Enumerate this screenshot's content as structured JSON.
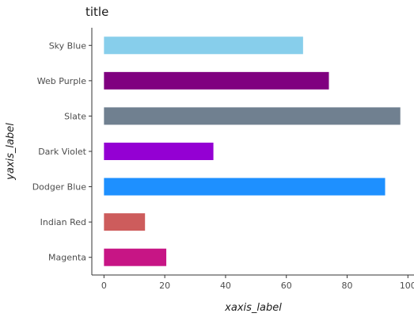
{
  "chart_data": {
    "type": "bar",
    "orientation": "horizontal",
    "title": "title",
    "xlabel": "xaxis_label",
    "ylabel": "yaxis_label",
    "xlim": [
      -4,
      102
    ],
    "x_ticks": [
      0,
      20,
      40,
      60,
      80,
      100
    ],
    "grid": false,
    "legend": "none",
    "categories": [
      "Magenta",
      "Indian Red",
      "Dodger Blue",
      "Dark Violet",
      "Slate",
      "Web Purple",
      "Sky Blue"
    ],
    "values": [
      20.5,
      13.5,
      92.5,
      36,
      97.5,
      74,
      65.5
    ],
    "colors": [
      "#c71585",
      "#cd5c5c",
      "#1e90ff",
      "#9400d3",
      "#708090",
      "#800080",
      "#87ceeb"
    ]
  }
}
